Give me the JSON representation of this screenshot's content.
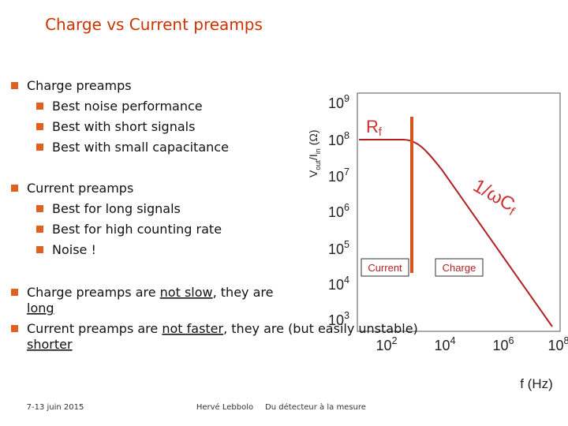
{
  "title": "Charge vs Current preamps",
  "bullets": [
    {
      "text": "Charge preamps",
      "items": [
        "Best noise performance",
        "Best with short signals",
        "Best with small capacitance"
      ]
    },
    {
      "text": "Current preamps",
      "items": [
        "Best for long signals",
        "Best for high counting rate",
        "Noise !"
      ]
    }
  ],
  "notes": [
    {
      "segments": [
        {
          "text": "Charge preamps are "
        },
        {
          "text": "not slow",
          "underline": true
        },
        {
          "text": ", they are "
        },
        {
          "text": "long",
          "underline": true
        }
      ]
    },
    {
      "segments": [
        {
          "text": "Current preamps are "
        },
        {
          "text": "not faster",
          "underline": true
        },
        {
          "text": ", they are "
        },
        {
          "text": "shorter ",
          "underline": true
        },
        {
          "text": "(but easily unstable)"
        }
      ]
    }
  ],
  "figure": {
    "y_axis_label": [
      {
        "text": "V"
      },
      {
        "text": "out",
        "sub": true
      },
      {
        "text": "/I"
      },
      {
        "text": "in",
        "sub": true
      },
      {
        "text": " (Ω)"
      }
    ],
    "y_labels": [
      {
        "base": "10",
        "sup": "9"
      },
      {
        "base": "10",
        "sup": "8"
      },
      {
        "base": "10",
        "sup": "7"
      },
      {
        "base": "10",
        "sup": "6"
      },
      {
        "base": "10",
        "sup": "5"
      },
      {
        "base": "10",
        "sup": "4"
      },
      {
        "base": "10",
        "sup": "3"
      }
    ],
    "x_labels": [
      {
        "base": "10",
        "sup": "2"
      },
      {
        "base": "10",
        "sup": "4"
      },
      {
        "base": "10",
        "sup": "6"
      },
      {
        "base": "10",
        "sup": "8"
      }
    ],
    "x_axis_label": "f (Hz)",
    "rf_label": [
      {
        "text": "R"
      },
      {
        "text": "f",
        "sub": true
      }
    ],
    "slope_label": [
      {
        "text": "1/ωC"
      },
      {
        "text": "f",
        "sub": true
      }
    ],
    "current_box": "Current",
    "charge_box": "Charge"
  },
  "footer": {
    "date": "7-13 juin 2015",
    "author": "Hervé Lebbolo",
    "event": "Du détecteur à la mesure"
  }
}
